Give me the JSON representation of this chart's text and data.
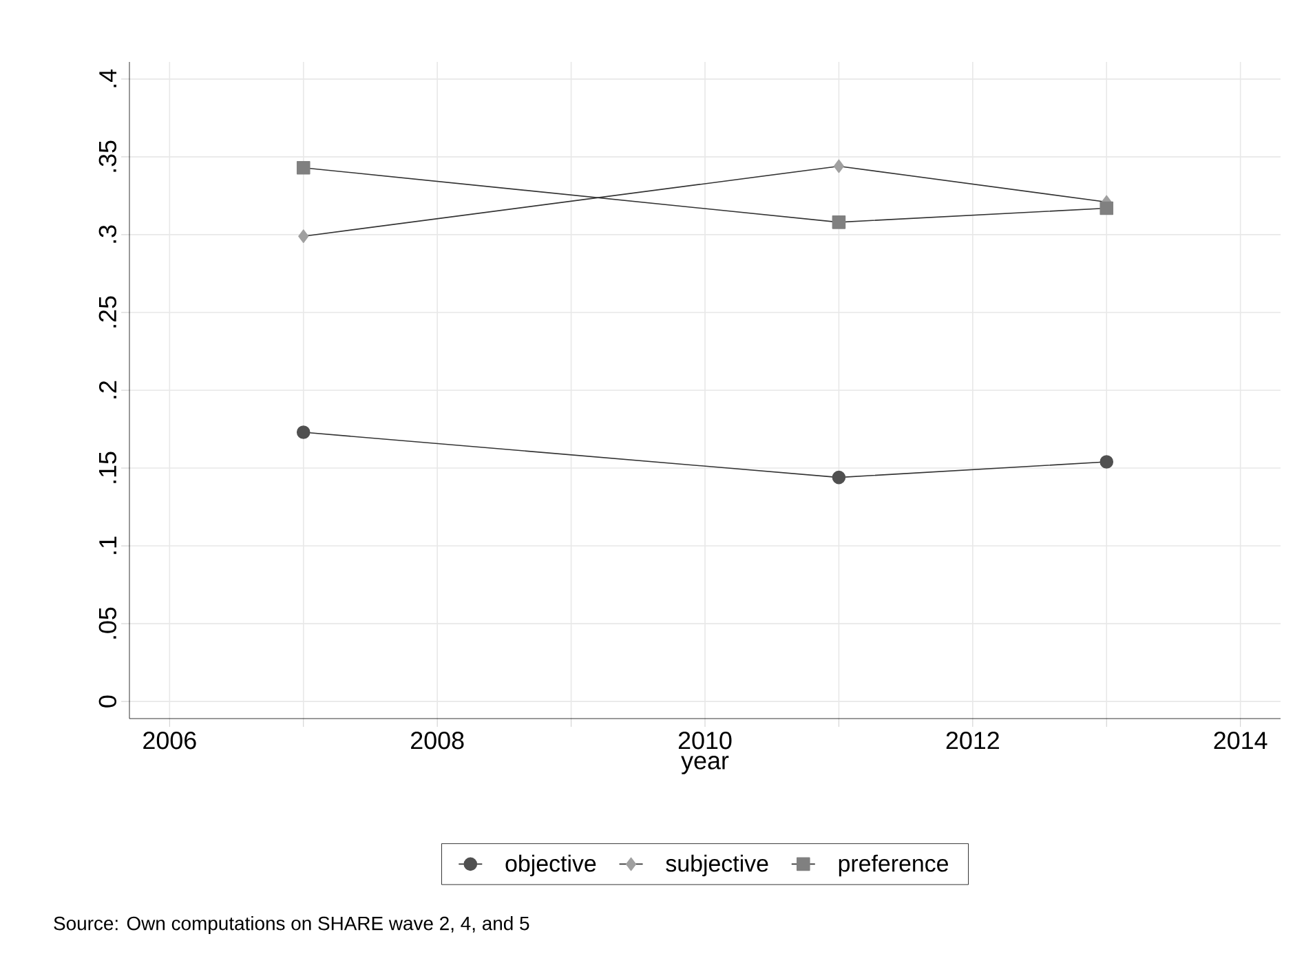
{
  "chart_data": {
    "type": "line",
    "xlabel": "year",
    "x": [
      2007,
      2011,
      2013
    ],
    "series": [
      {
        "name": "objective",
        "color": "#505050",
        "marker": "circle",
        "values": [
          0.173,
          0.144,
          0.154
        ]
      },
      {
        "name": "subjective",
        "color": "#a0a0a0",
        "marker": "diamond",
        "values": [
          0.299,
          0.344,
          0.321
        ]
      },
      {
        "name": "preference",
        "color": "#808080",
        "marker": "square",
        "values": [
          0.343,
          0.308,
          0.317
        ]
      }
    ],
    "xlim": [
      2006,
      2014
    ],
    "ylim": [
      0,
      0.4
    ],
    "xticks": [
      2006,
      {
        "value": 2007,
        "label": null
      },
      2008,
      {
        "value": 2009,
        "label": null
      },
      2010,
      {
        "value": 2011,
        "label": null
      },
      2012,
      {
        "value": 2013,
        "label": null
      },
      2014
    ],
    "yticks": [
      0,
      {
        "value": 0.05,
        "label": ".05"
      },
      {
        "value": 0.1,
        "label": ".1"
      },
      {
        "value": 0.15,
        "label": ".15"
      },
      {
        "value": 0.2,
        "label": ".2"
      },
      {
        "value": 0.25,
        "label": ".25"
      },
      {
        "value": 0.3,
        "label": ".3"
      },
      {
        "value": 0.35,
        "label": ".35"
      },
      {
        "value": 0.4,
        "label": ".4"
      }
    ],
    "grid": true,
    "legend": "bottom",
    "line_style": "solid",
    "annotations": [
      "Source:  Own computations on SHARE wave 2, 4, and 5"
    ]
  }
}
